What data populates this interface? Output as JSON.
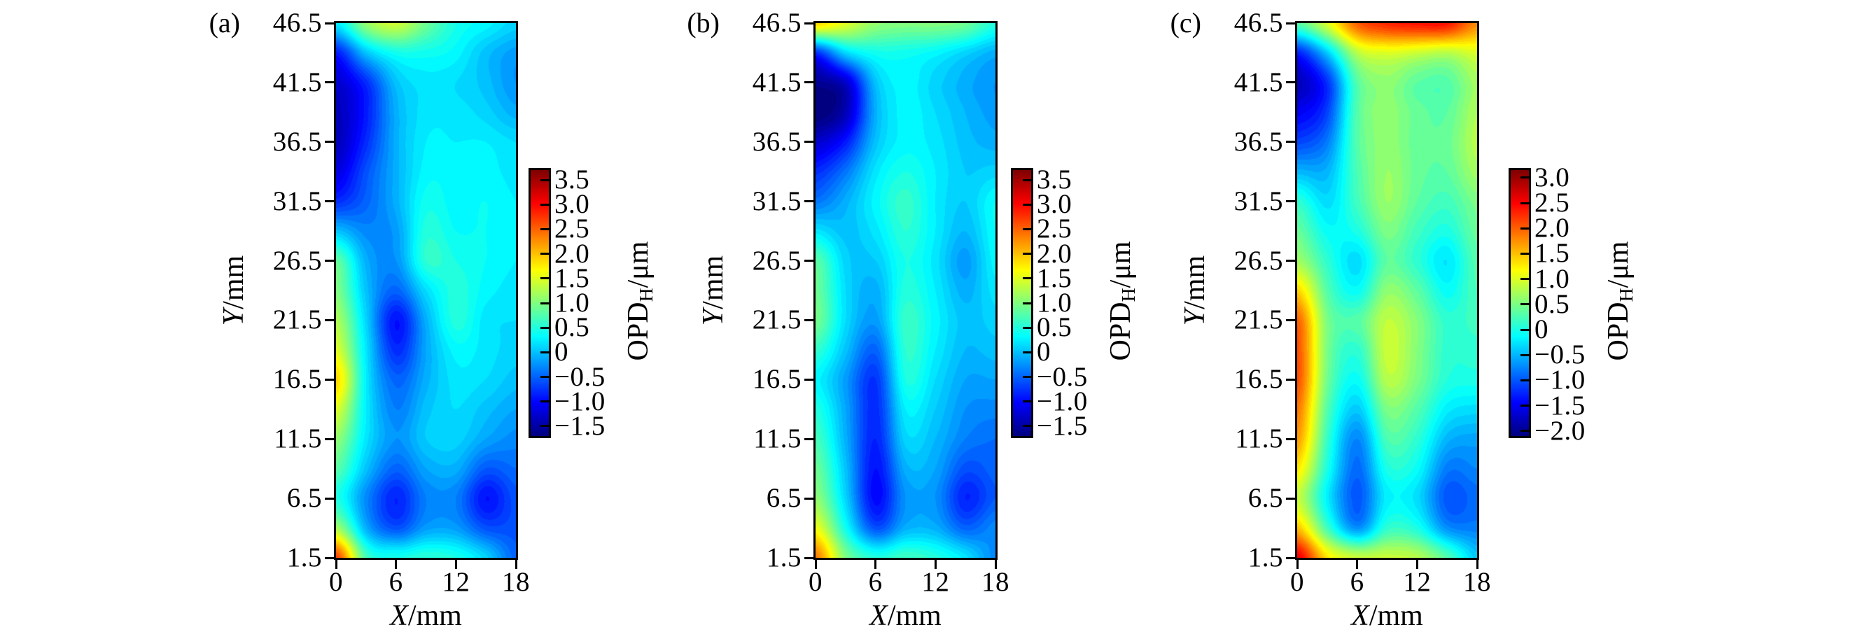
{
  "figure": {
    "background": "#ffffff",
    "colormap": "jet",
    "xlabel_var": "X",
    "xlabel_unit": "/mm",
    "ylabel_var": "Y",
    "ylabel_unit": "/mm",
    "opd_main": "OPD",
    "opd_sub": "H",
    "opd_unit": "/μm"
  },
  "chart_data": [
    {
      "type": "heatmap",
      "panel": "(a)",
      "xlabel": "X/mm",
      "ylabel": "Y/mm",
      "colorbar_label": "OPD_H/μm",
      "x_range": [
        0,
        18
      ],
      "y_range": [
        1.5,
        46.5
      ],
      "x_tick_values": [
        0,
        6,
        12,
        18
      ],
      "x_ticks": [
        "0",
        "6",
        "12",
        "18"
      ],
      "y_tick_values": [
        46.5,
        41.5,
        36.5,
        31.5,
        26.5,
        21.5,
        16.5,
        11.5,
        6.5,
        1.5
      ],
      "y_ticks": [
        "46.5",
        "41.5",
        "36.5",
        "31.5",
        "26.5",
        "21.5",
        "16.5",
        "11.5",
        "6.5",
        "1.5"
      ],
      "colorbar_tick_values": [
        3.5,
        3.0,
        2.5,
        2.0,
        1.5,
        1.0,
        0.5,
        0,
        -0.5,
        -1.0,
        -1.5
      ],
      "colorbar_ticks": [
        "3.5",
        "3.0",
        "2.5",
        "2.0",
        "1.5",
        "1.0",
        "0.5",
        "0",
        "−0.5",
        "−1.0",
        "−1.5"
      ],
      "color_range": [
        -1.7,
        3.7
      ],
      "grid_x": [
        0,
        3,
        6,
        9,
        12,
        15,
        18
      ],
      "grid_y": [
        46.5,
        44,
        41.5,
        39,
        36.5,
        34,
        31.5,
        29,
        26.5,
        24,
        21.5,
        19,
        16.5,
        14,
        11.5,
        9,
        6.5,
        4,
        1.5
      ],
      "values": [
        [
          0.2,
          1.1,
          1.4,
          0.9,
          0.45,
          0.3,
          0.1
        ],
        [
          -0.9,
          0.0,
          0.4,
          0.4,
          0.3,
          0.0,
          -0.2
        ],
        [
          -1.3,
          -0.8,
          0.0,
          0.2,
          0.15,
          0.0,
          -0.25
        ],
        [
          -1.4,
          -0.9,
          -0.1,
          0.2,
          0.2,
          0.1,
          -0.1
        ],
        [
          -1.4,
          -0.8,
          -0.1,
          0.25,
          0.25,
          0.25,
          0.15
        ],
        [
          -1.2,
          -0.6,
          -0.1,
          0.3,
          0.3,
          0.3,
          0.2
        ],
        [
          -0.8,
          -0.5,
          -0.1,
          0.4,
          0.3,
          0.35,
          0.25
        ],
        [
          0.0,
          -0.3,
          -0.2,
          0.5,
          0.35,
          0.35,
          0.25
        ],
        [
          0.85,
          -0.1,
          -0.25,
          0.55,
          0.45,
          0.35,
          0.25
        ],
        [
          1.0,
          0.0,
          -0.5,
          0.15,
          0.5,
          0.3,
          0.2
        ],
        [
          1.25,
          0.1,
          -0.95,
          -0.1,
          0.5,
          0.2,
          0.15
        ],
        [
          1.5,
          0.2,
          -0.8,
          -0.15,
          0.3,
          0.2,
          0.1
        ],
        [
          1.9,
          0.25,
          -0.5,
          -0.1,
          0.2,
          0.15,
          0.0
        ],
        [
          1.5,
          0.25,
          -0.35,
          0.0,
          0.15,
          0.0,
          -0.15
        ],
        [
          1.1,
          0.2,
          -0.25,
          0.05,
          0.1,
          -0.15,
          -0.3
        ],
        [
          0.8,
          0.0,
          -0.5,
          -0.15,
          -0.1,
          -0.55,
          -0.45
        ],
        [
          0.5,
          -0.3,
          -0.85,
          -0.35,
          -0.35,
          -0.95,
          -0.6
        ],
        [
          1.2,
          -0.1,
          -0.6,
          -0.2,
          -0.2,
          -0.6,
          -0.6
        ],
        [
          2.7,
          0.7,
          0.45,
          0.55,
          0.45,
          0.1,
          -0.5
        ]
      ]
    },
    {
      "type": "heatmap",
      "panel": "(b)",
      "xlabel": "X/mm",
      "ylabel": "Y/mm",
      "colorbar_label": "OPD_H/μm",
      "x_range": [
        0,
        18
      ],
      "y_range": [
        1.5,
        46.5
      ],
      "x_tick_values": [
        0,
        6,
        12,
        18
      ],
      "x_ticks": [
        "0",
        "6",
        "12",
        "18"
      ],
      "y_tick_values": [
        46.5,
        41.5,
        36.5,
        31.5,
        26.5,
        21.5,
        16.5,
        11.5,
        6.5,
        1.5
      ],
      "y_ticks": [
        "46.5",
        "41.5",
        "36.5",
        "31.5",
        "26.5",
        "21.5",
        "16.5",
        "11.5",
        "6.5",
        "1.5"
      ],
      "colorbar_tick_values": [
        3.5,
        3.0,
        2.5,
        2.0,
        1.5,
        1.0,
        0.5,
        0,
        -0.5,
        -1.0,
        -1.5
      ],
      "colorbar_ticks": [
        "3.5",
        "3.0",
        "2.5",
        "2.0",
        "1.5",
        "1.0",
        "0.5",
        "0",
        "−0.5",
        "−1.0",
        "−1.5"
      ],
      "color_range": [
        -1.7,
        3.7
      ],
      "grid_x": [
        0,
        3,
        6,
        9,
        12,
        15,
        18
      ],
      "grid_y": [
        46.5,
        44,
        41.5,
        39,
        36.5,
        34,
        31.5,
        29,
        26.5,
        24,
        21.5,
        19,
        16.5,
        14,
        11.5,
        9,
        6.5,
        4,
        1.5
      ],
      "values": [
        [
          1.9,
          1.5,
          1.1,
          1.0,
          1.0,
          0.9,
          0.5
        ],
        [
          -0.8,
          0.1,
          0.4,
          0.4,
          0.3,
          0.1,
          -0.1
        ],
        [
          -1.6,
          -1.3,
          0.0,
          0.3,
          0.1,
          -0.1,
          -0.25
        ],
        [
          -1.75,
          -1.4,
          -0.1,
          0.3,
          0.15,
          -0.05,
          -0.2
        ],
        [
          -1.3,
          -0.9,
          0.0,
          0.3,
          0.2,
          0.0,
          -0.1
        ],
        [
          -0.8,
          -0.4,
          0.2,
          0.45,
          0.25,
          0.05,
          0.1
        ],
        [
          -0.4,
          -0.1,
          0.3,
          0.6,
          0.25,
          0.05,
          0.35
        ],
        [
          0.2,
          0.0,
          0.2,
          0.55,
          0.25,
          -0.05,
          0.35
        ],
        [
          0.8,
          0.1,
          0.05,
          0.45,
          0.2,
          -0.2,
          0.3
        ],
        [
          0.9,
          0.15,
          -0.1,
          0.5,
          0.25,
          -0.1,
          0.2
        ],
        [
          0.95,
          0.15,
          -0.2,
          0.6,
          0.3,
          0.0,
          0.1
        ],
        [
          0.6,
          0.0,
          -0.5,
          0.55,
          0.25,
          -0.05,
          0.0
        ],
        [
          0.3,
          -0.2,
          -0.75,
          0.45,
          0.15,
          -0.15,
          -0.15
        ],
        [
          0.5,
          -0.15,
          -0.8,
          0.25,
          0.05,
          -0.25,
          -0.3
        ],
        [
          0.7,
          -0.1,
          -0.85,
          0.1,
          -0.05,
          -0.35,
          -0.45
        ],
        [
          0.9,
          0.0,
          -0.95,
          -0.1,
          -0.15,
          -0.6,
          -0.5
        ],
        [
          1.1,
          0.1,
          -1.0,
          -0.25,
          -0.25,
          -0.85,
          -0.55
        ],
        [
          1.6,
          0.4,
          -0.6,
          -0.1,
          -0.1,
          -0.5,
          -0.3
        ],
        [
          2.4,
          1.0,
          0.5,
          0.65,
          0.5,
          0.2,
          -0.3
        ]
      ]
    },
    {
      "type": "heatmap",
      "panel": "(c)",
      "xlabel": "X/mm",
      "ylabel": "Y/mm",
      "colorbar_label": "OPD_H/μm",
      "x_range": [
        0,
        18
      ],
      "y_range": [
        1.5,
        46.5
      ],
      "x_tick_values": [
        0,
        6,
        12,
        18
      ],
      "x_ticks": [
        "0",
        "6",
        "12",
        "18"
      ],
      "y_tick_values": [
        46.5,
        41.5,
        36.5,
        31.5,
        26.5,
        21.5,
        16.5,
        11.5,
        6.5,
        1.5
      ],
      "y_ticks": [
        "46.5",
        "41.5",
        "36.5",
        "31.5",
        "26.5",
        "21.5",
        "16.5",
        "11.5",
        "6.5",
        "1.5"
      ],
      "colorbar_tick_values": [
        3.0,
        2.5,
        2.0,
        1.5,
        1.0,
        0.5,
        0,
        -0.5,
        -1.0,
        -1.5,
        -2.0
      ],
      "colorbar_ticks": [
        "3.0",
        "2.5",
        "2.0",
        "1.5",
        "1.0",
        "0.5",
        "0",
        "−0.5",
        "−1.0",
        "−1.5",
        "−2.0"
      ],
      "color_range": [
        -2.1,
        3.15
      ],
      "grid_x": [
        0,
        3,
        6,
        9,
        12,
        15,
        18
      ],
      "grid_y": [
        46.5,
        44,
        41.5,
        39,
        36.5,
        34,
        31.5,
        29,
        26.5,
        24,
        21.5,
        19,
        16.5,
        14,
        11.5,
        9,
        6.5,
        4,
        1.5
      ],
      "values": [
        [
          0.3,
          1.0,
          2.0,
          2.3,
          2.4,
          2.4,
          1.8
        ],
        [
          -1.3,
          -0.4,
          0.8,
          1.0,
          0.9,
          0.8,
          1.0
        ],
        [
          -1.8,
          -1.2,
          0.3,
          0.6,
          0.35,
          0.3,
          0.7
        ],
        [
          -1.5,
          -1.1,
          0.3,
          0.6,
          0.4,
          0.35,
          0.75
        ],
        [
          -1.1,
          -0.8,
          0.3,
          0.6,
          0.4,
          0.4,
          0.8
        ],
        [
          -0.5,
          -0.5,
          0.25,
          0.65,
          0.4,
          0.35,
          0.7
        ],
        [
          0.1,
          -0.3,
          0.2,
          0.65,
          0.35,
          0.2,
          0.5
        ],
        [
          0.4,
          -0.1,
          0.0,
          0.5,
          0.2,
          0.0,
          0.4
        ],
        [
          0.7,
          0.1,
          -0.3,
          0.35,
          0.1,
          -0.25,
          0.3
        ],
        [
          1.4,
          0.3,
          -0.1,
          0.6,
          0.35,
          -0.1,
          0.25
        ],
        [
          2.0,
          0.5,
          0.3,
          0.85,
          0.55,
          0.1,
          0.2
        ],
        [
          2.1,
          0.5,
          0.1,
          0.9,
          0.55,
          0.1,
          0.1
        ],
        [
          2.1,
          0.45,
          -0.1,
          0.8,
          0.5,
          0.05,
          0.0
        ],
        [
          1.9,
          0.3,
          -0.4,
          0.5,
          0.3,
          -0.2,
          -0.3
        ],
        [
          1.7,
          0.15,
          -0.75,
          0.25,
          0.1,
          -0.5,
          -0.6
        ],
        [
          1.3,
          0.0,
          -0.9,
          0.0,
          -0.1,
          -0.8,
          -0.75
        ],
        [
          0.9,
          -0.2,
          -1.0,
          -0.2,
          -0.3,
          -1.0,
          -0.9
        ],
        [
          1.5,
          0.2,
          -0.7,
          0.1,
          0.0,
          -0.7,
          -0.8
        ],
        [
          2.6,
          1.3,
          0.9,
          0.9,
          0.8,
          0.3,
          -0.4
        ]
      ]
    }
  ]
}
